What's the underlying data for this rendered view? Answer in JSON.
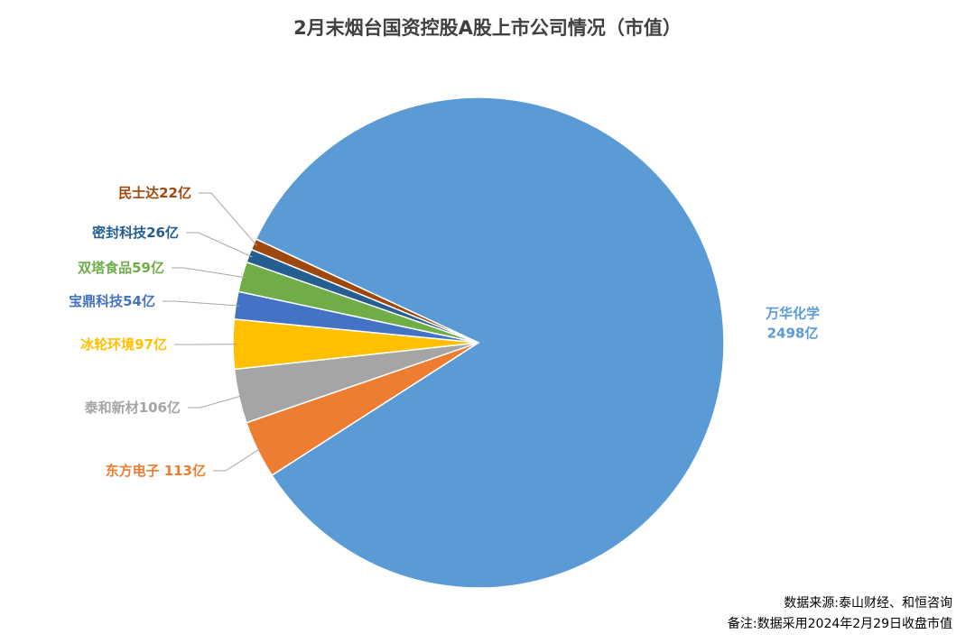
{
  "chart_data": {
    "type": "pie",
    "title": "2月末烟台国资控股A股上市公司情况（市值）",
    "categories": [
      "万华化学",
      "东方电子",
      "泰和新材",
      "冰轮环境",
      "宝鼎科技",
      "双塔食品",
      "密封科技",
      "民士达"
    ],
    "values": [
      2498,
      113,
      106,
      97,
      54,
      59,
      26,
      22
    ],
    "value_labels": [
      "2498亿",
      "113亿",
      "106亿",
      "97亿",
      "54亿",
      "59亿",
      "26亿",
      "22亿"
    ],
    "colors": [
      "#5b9bd5",
      "#ed7d31",
      "#a5a5a5",
      "#ffc000",
      "#4472c4",
      "#70ad47",
      "#255e91",
      "#9e480e"
    ],
    "notes": [
      "数据来源:泰山财经、和恒咨询",
      "备注:数据采用2024年2月29日收盘市值"
    ]
  }
}
